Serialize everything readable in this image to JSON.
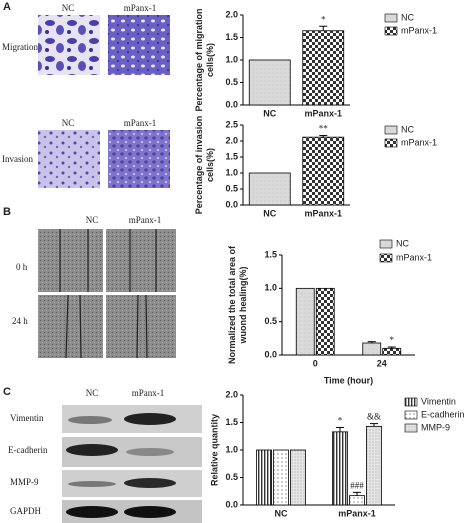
{
  "figure": {
    "panel_a": {
      "label": "A",
      "migration": {
        "row": "Migration",
        "columns": [
          "NC",
          "mPanx-1"
        ]
      },
      "invasion": {
        "row": "Invasion",
        "columns": [
          "NC",
          "mPanx-1"
        ]
      }
    },
    "panel_b": {
      "label": "B",
      "columns": [
        "NC",
        "mPanx-1"
      ],
      "rows": [
        "0 h",
        "24 h"
      ]
    },
    "panel_c": {
      "label": "C",
      "columns": [
        "NC",
        "mPanx-1"
      ],
      "rows": [
        "Vimentin",
        "E-cadherin",
        "MMP-9",
        "GAPDH"
      ]
    }
  },
  "chart_data": [
    {
      "type": "bar",
      "ylabel": [
        "Percentage of migration",
        "cells(%)"
      ],
      "categories": [
        "NC",
        "mPanx-1"
      ],
      "series": [
        {
          "name": "NC",
          "color": "#d4d4d4",
          "hatch": "plain",
          "values": [
            1.0,
            null
          ],
          "errors": [
            null,
            null
          ],
          "annotations": [
            null,
            null
          ]
        },
        {
          "name": "mPanx-1",
          "color": "#555555",
          "hatch": "checker",
          "values": [
            null,
            1.65
          ],
          "errors": [
            null,
            0.1
          ],
          "annotations": [
            null,
            "*"
          ]
        }
      ],
      "ylim": [
        0,
        2.0
      ],
      "yticks": [
        {
          "value": 0,
          "label": "0.0"
        },
        0.5,
        {
          "value": 1,
          "label": "1.0"
        },
        1.5,
        {
          "value": 2,
          "label": "2.0"
        }
      ]
    },
    {
      "type": "bar",
      "ylabel": [
        "Percentage of invasion",
        "cells(%)"
      ],
      "categories": [
        "NC",
        "mPanx-1"
      ],
      "series": [
        {
          "name": "NC",
          "color": "#d4d4d4",
          "hatch": "plain",
          "values": [
            1.0,
            null
          ],
          "errors": [
            null,
            null
          ],
          "annotations": [
            null,
            null
          ]
        },
        {
          "name": "mPanx-1",
          "color": "#555555",
          "hatch": "checker",
          "values": [
            null,
            2.12
          ],
          "errors": [
            null,
            0.05
          ],
          "annotations": [
            null,
            "**"
          ]
        }
      ],
      "ylim": [
        0,
        2.5
      ],
      "yticks": [
        {
          "value": 0,
          "label": "0.0"
        },
        0.5,
        {
          "value": 1,
          "label": "1.0"
        },
        1.5,
        {
          "value": 2,
          "label": "2.0"
        },
        2.5
      ]
    },
    {
      "type": "bar",
      "ylabel": [
        "Normalized the total area of",
        "wuond healing(%)"
      ],
      "xlabel": "Time (hour)",
      "categories": [
        "0",
        "24"
      ],
      "series": [
        {
          "name": "NC",
          "color": "#d4d4d4",
          "hatch": "plain",
          "values": [
            1.0,
            0.18
          ],
          "errors": [
            null,
            0.02
          ],
          "annotations": [
            null,
            null
          ]
        },
        {
          "name": "mPanx-1",
          "color": "#555555",
          "hatch": "checker",
          "values": [
            1.0,
            0.1
          ],
          "errors": [
            null,
            0.02
          ],
          "annotations": [
            null,
            "*"
          ]
        }
      ],
      "ylim": [
        0,
        1.5
      ],
      "yticks": [
        {
          "value": 0,
          "label": "0.0"
        },
        0.5,
        {
          "value": 1,
          "label": "1.0"
        },
        1.5
      ]
    },
    {
      "type": "bar",
      "ylabel": [
        "Relative quantity"
      ],
      "categories": [
        "NC",
        "mPanx-1"
      ],
      "series": [
        {
          "name": "Vimentin",
          "color": "#777777",
          "hatch": "vertical",
          "values": [
            1.0,
            1.33
          ],
          "errors": [
            null,
            0.08
          ],
          "annotations": [
            null,
            "*"
          ]
        },
        {
          "name": "E-cadherin",
          "color": "#999999",
          "hatch": "dots",
          "values": [
            1.0,
            0.17
          ],
          "errors": [
            null,
            0.06
          ],
          "annotations": [
            null,
            "###"
          ]
        },
        {
          "name": "MMP-9",
          "color": "#bbbbbb",
          "hatch": "stipple",
          "values": [
            1.0,
            1.43
          ],
          "errors": [
            null,
            0.05
          ],
          "annotations": [
            null,
            "&&"
          ]
        }
      ],
      "ylim": [
        0,
        2.0
      ],
      "yticks": [
        {
          "value": 0,
          "label": "0.0"
        },
        0.5,
        {
          "value": 1,
          "label": "1.0"
        },
        1.5,
        {
          "value": 2,
          "label": "2.0"
        }
      ]
    }
  ]
}
